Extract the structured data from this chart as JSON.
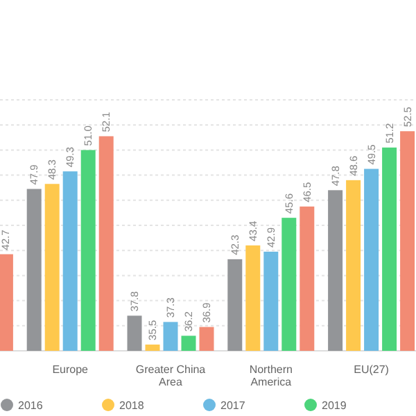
{
  "chart_data": {
    "type": "bar",
    "categories": [
      null,
      "Europe",
      "Greater China Area",
      "Northern America",
      "EU(27)"
    ],
    "series": [
      {
        "name": "2016",
        "color": "#939598",
        "values": [
          null,
          47.9,
          37.8,
          42.3,
          47.8
        ],
        "value_labels": [
          null,
          "47.9",
          "37.8",
          "42.3",
          "47.8"
        ]
      },
      {
        "name": "2018",
        "color": "#fec84d",
        "values": [
          null,
          48.3,
          35.5,
          43.4,
          48.6
        ],
        "value_labels": [
          null,
          "48.3",
          "35.5",
          "43.4",
          "48.6"
        ]
      },
      {
        "name": "2017",
        "color": "#6cbae3",
        "values": [
          null,
          49.3,
          37.3,
          42.9,
          49.5
        ],
        "value_labels": [
          null,
          "49.3",
          "37.3",
          "42.9",
          "49.5"
        ]
      },
      {
        "name": "2019",
        "color": "#4cd47b",
        "values": [
          null,
          51.0,
          36.2,
          45.6,
          51.2
        ],
        "value_labels": [
          null,
          "51.0",
          "36.2",
          "45.6",
          "51.2"
        ]
      },
      {
        "color": "#f28b74",
        "values": [
          42.7,
          52.1,
          36.9,
          46.5,
          52.5
        ],
        "value_labels": [
          "42.7",
          "52.1",
          "36.9",
          "46.5",
          "52.5"
        ]
      }
    ],
    "ylim": [
      35,
      55
    ],
    "yticks": [
      {
        "value": 35,
        "label": null
      },
      {
        "value": 37,
        "label": null
      },
      {
        "value": 39,
        "label": null
      },
      {
        "value": 41,
        "label": null
      },
      {
        "value": 43,
        "label": null
      },
      {
        "value": 45,
        "label": null
      },
      {
        "value": 47,
        "label": null
      },
      {
        "value": 49,
        "label": null
      },
      {
        "value": 51,
        "label": null
      },
      {
        "value": 53,
        "label": null
      },
      {
        "value": 55,
        "label": null
      }
    ],
    "tick_labels": "x",
    "grid": "y",
    "legend": "bottom"
  }
}
